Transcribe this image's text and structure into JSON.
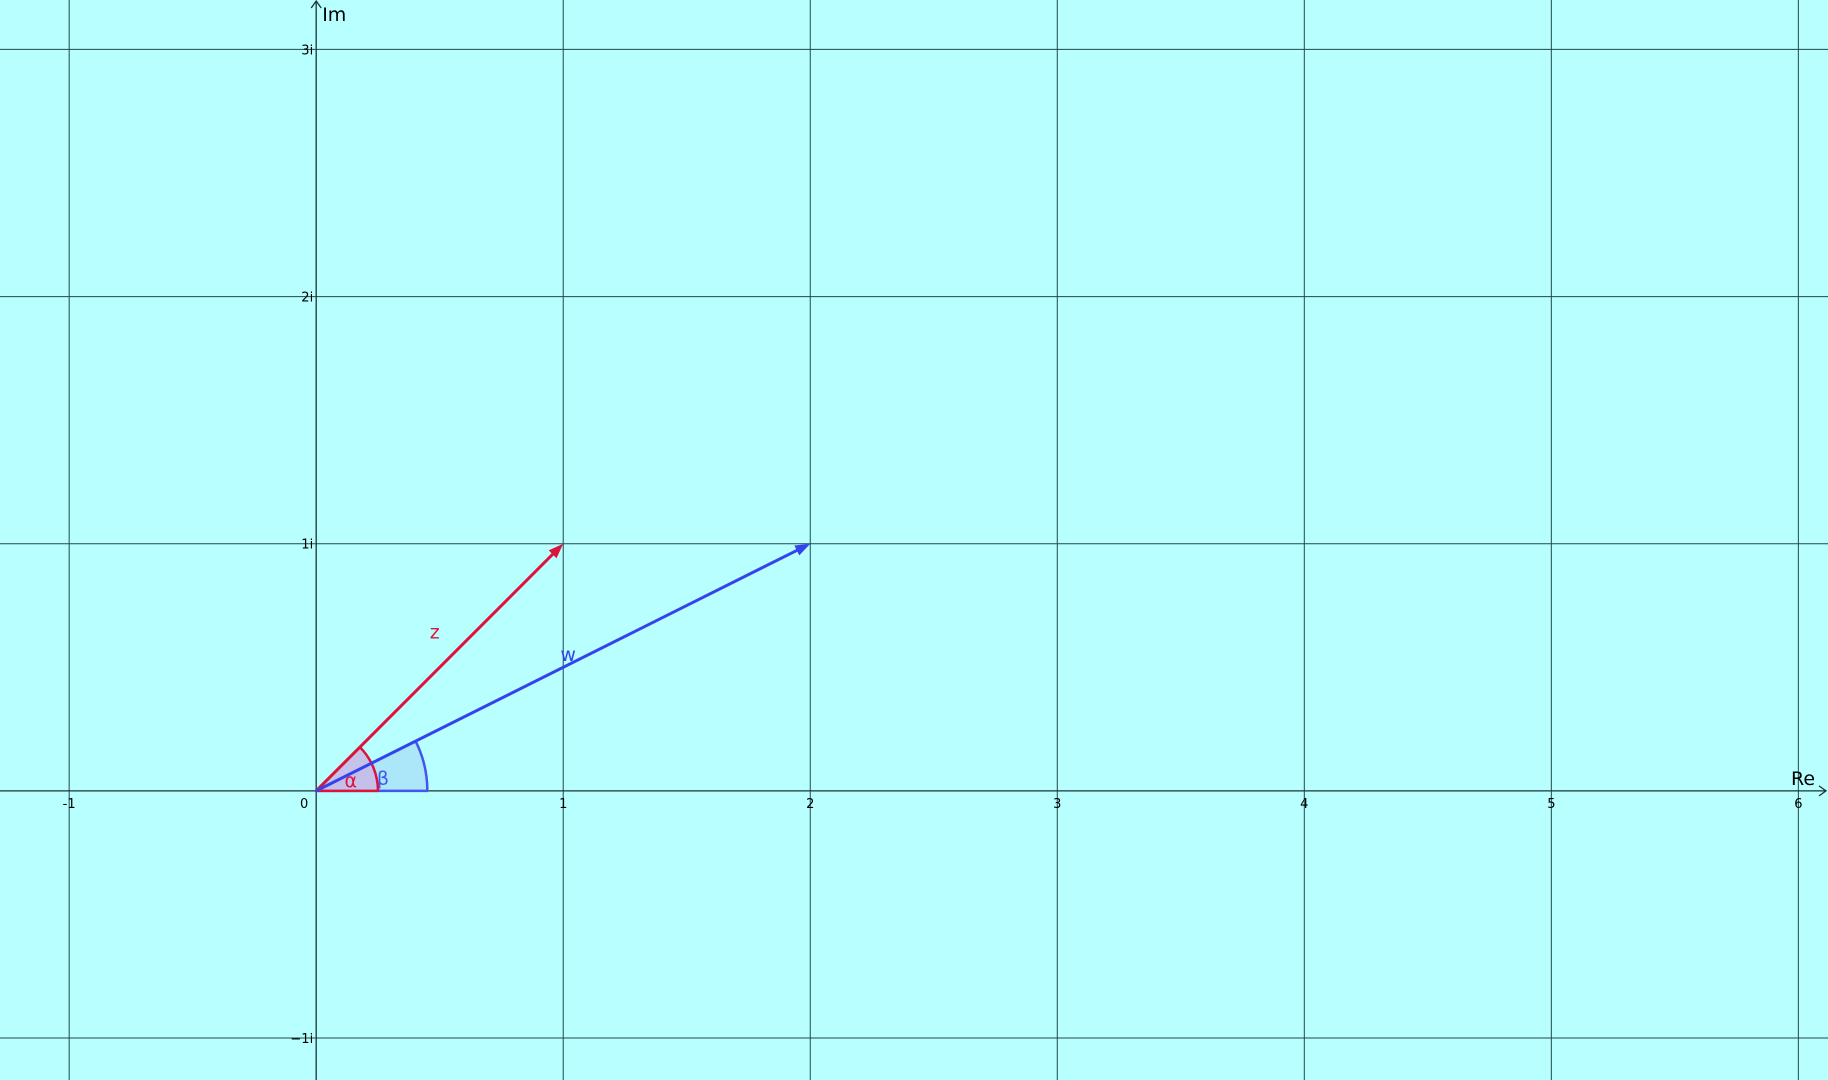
{
  "plane": {
    "background": "#b8ffff",
    "grid_color": "#1f4a4a",
    "axis_color": "#1a3535",
    "x_axis_label": "Re",
    "y_axis_label": "Im",
    "x_range": [
      -1.28,
      6.12
    ],
    "y_range": [
      -1.17,
      3.2
    ],
    "x_ticks": [
      {
        "value": -1,
        "label": "-1"
      },
      {
        "value": 1,
        "label": "1"
      },
      {
        "value": 2,
        "label": "2"
      },
      {
        "value": 3,
        "label": "3"
      },
      {
        "value": 4,
        "label": "4"
      },
      {
        "value": 5,
        "label": "5"
      },
      {
        "value": 6,
        "label": "6"
      }
    ],
    "y_ticks": [
      {
        "value": -1,
        "label": "−1i"
      },
      {
        "value": 1,
        "label": "1i"
      },
      {
        "value": 2,
        "label": "2i"
      },
      {
        "value": 3,
        "label": "3i"
      }
    ],
    "origin_label": "0"
  },
  "vectors": [
    {
      "id": "z",
      "label": "z",
      "x": 1,
      "y": 1,
      "color": "#dc143c",
      "label_at": [
        0.48,
        0.64
      ]
    },
    {
      "id": "w",
      "label": "w",
      "x": 2,
      "y": 1,
      "color": "#3344ee",
      "label_at": [
        1.02,
        0.55
      ]
    }
  ],
  "angles": [
    {
      "id": "alpha",
      "label": "α",
      "vector": "z",
      "radius": 0.25,
      "color": "#dc143c",
      "fill": "#c8b8e8",
      "label_at": [
        0.14,
        0.04
      ]
    },
    {
      "id": "beta",
      "label": "β",
      "vector": "w",
      "radius": 0.45,
      "color": "#4455ee",
      "fill": "#a8e2f8",
      "label_at": [
        0.27,
        0.05
      ]
    }
  ]
}
